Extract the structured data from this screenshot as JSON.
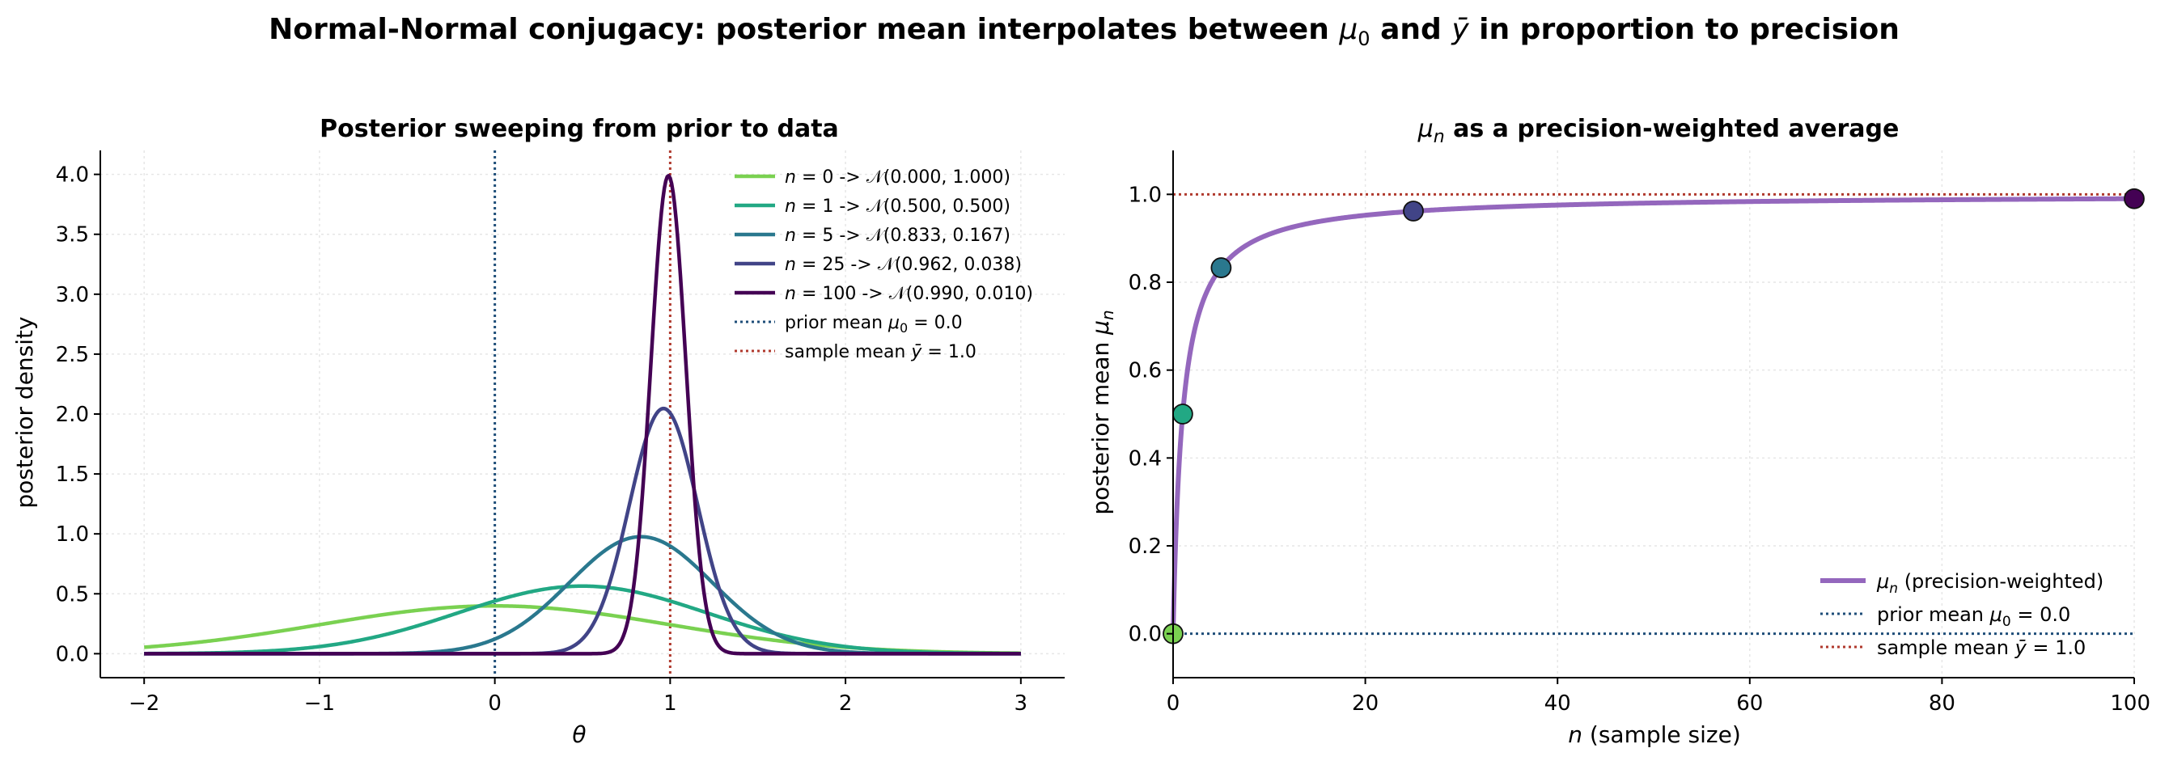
{
  "figure": {
    "suptitle_a": "Normal-Normal conjugacy: posterior mean interpolates between ",
    "suptitle_mu": "μ",
    "suptitle_mu_sub": "0",
    "suptitle_b": " and ",
    "suptitle_ybar": "ȳ",
    "suptitle_c": " in proportion to precision"
  },
  "colors": {
    "n0": "#7ad151",
    "n1": "#22a884",
    "n5": "#2a788e",
    "n25": "#414487",
    "n100": "#440154",
    "prior_line": "#1f4e79",
    "sample_line": "#b03a2e",
    "mu_curve": "#9467bd",
    "grid": "#e6e6e6"
  },
  "chart_data": [
    {
      "type": "line",
      "title": "Posterior sweeping from prior to data",
      "xlabel": "θ",
      "ylabel": "posterior density",
      "xlim": [
        -2.25,
        3.25
      ],
      "ylim": [
        -0.2,
        4.2
      ],
      "xticks": [
        -2,
        -1,
        0,
        1,
        2,
        3
      ],
      "xtick_labels": [
        "−2",
        "−1",
        "0",
        "1",
        "2",
        "3"
      ],
      "yticks": [
        0.0,
        0.5,
        1.0,
        1.5,
        2.0,
        2.5,
        3.0,
        3.5,
        4.0
      ],
      "ytick_labels": [
        "0.0",
        "0.5",
        "1.0",
        "1.5",
        "2.0",
        "2.5",
        "3.0",
        "3.5",
        "4.0"
      ],
      "grid": true,
      "legend_position": "top-right",
      "x_range": [
        -2,
        3
      ],
      "series": [
        {
          "name": "n = 0  ->  𝒩(0.000, 1.000)",
          "n_label": "n",
          "eq": " = 0  ->  ",
          "dist": "𝒩(0.000, 1.000)",
          "mean": 0.0,
          "variance": 1.0,
          "color_key": "n0"
        },
        {
          "name": "n = 1  ->  𝒩(0.500, 0.500)",
          "n_label": "n",
          "eq": " = 1  ->  ",
          "dist": "𝒩(0.500, 0.500)",
          "mean": 0.5,
          "variance": 0.5,
          "color_key": "n1"
        },
        {
          "name": "n = 5  ->  𝒩(0.833, 0.167)",
          "n_label": "n",
          "eq": " = 5  ->  ",
          "dist": "𝒩(0.833, 0.167)",
          "mean": 0.833,
          "variance": 0.167,
          "color_key": "n5"
        },
        {
          "name": "n = 25  ->  𝒩(0.962, 0.038)",
          "n_label": "n",
          "eq": " = 25  ->  ",
          "dist": "𝒩(0.962, 0.038)",
          "mean": 0.962,
          "variance": 0.038,
          "color_key": "n25"
        },
        {
          "name": "n = 100  ->  𝒩(0.990, 0.010)",
          "n_label": "n",
          "eq": " = 100  ->  ",
          "dist": "𝒩(0.990, 0.010)",
          "mean": 0.99,
          "variance": 0.01,
          "color_key": "n100"
        }
      ],
      "reference_lines": [
        {
          "name": "prior mean μ0 = 0.0",
          "label_a": "prior mean ",
          "sym": "μ",
          "sub": "0",
          "label_b": " = 0.0",
          "x": 0.0,
          "color_key": "prior_line"
        },
        {
          "name": "sample mean ȳ = 1.0",
          "label_a": "sample mean ",
          "sym": "ȳ",
          "sub": "",
          "label_b": " = 1.0",
          "x": 1.0,
          "color_key": "sample_line"
        }
      ]
    },
    {
      "type": "line",
      "title_sym": "μ",
      "title_sub": "n",
      "title_rest": " as a precision-weighted average",
      "xlabel_sym": "n",
      "xlabel_rest": "  (sample size)",
      "ylabel_a": "posterior mean ",
      "ylabel_sym": "μ",
      "ylabel_sub": "n",
      "xlim": [
        0,
        100
      ],
      "ylim": [
        -0.1,
        1.1
      ],
      "xticks": [
        0,
        20,
        40,
        60,
        80,
        100
      ],
      "xtick_labels": [
        "0",
        "20",
        "40",
        "60",
        "80",
        "100"
      ],
      "yticks": [
        0.0,
        0.2,
        0.4,
        0.6,
        0.8,
        1.0
      ],
      "ytick_labels": [
        "0.0",
        "0.2",
        "0.4",
        "0.6",
        "0.8",
        "1.0"
      ],
      "grid": true,
      "legend_position": "bottom-right",
      "curve": {
        "name": "μn (precision-weighted)",
        "sym": "μ",
        "sub": "n",
        "rest": " (precision-weighted)",
        "formula": "n/(n+1)",
        "n_range": [
          0,
          100
        ],
        "color_key": "mu_curve"
      },
      "points": [
        {
          "n": 0,
          "mu": 0.0,
          "color_key": "n0"
        },
        {
          "n": 1,
          "mu": 0.5,
          "color_key": "n1"
        },
        {
          "n": 5,
          "mu": 0.833,
          "color_key": "n5"
        },
        {
          "n": 25,
          "mu": 0.962,
          "color_key": "n25"
        },
        {
          "n": 100,
          "mu": 0.99,
          "color_key": "n100"
        }
      ],
      "reference_lines": [
        {
          "name": "prior mean μ0 = 0.0",
          "label_a": "prior mean ",
          "sym": "μ",
          "sub": "0",
          "label_b": " = 0.0",
          "y": 0.0,
          "color_key": "prior_line"
        },
        {
          "name": "sample mean ȳ = 1.0",
          "label_a": "sample mean ",
          "sym": "ȳ",
          "sub": "",
          "label_b": " = 1.0",
          "y": 1.0,
          "color_key": "sample_line"
        }
      ]
    }
  ]
}
